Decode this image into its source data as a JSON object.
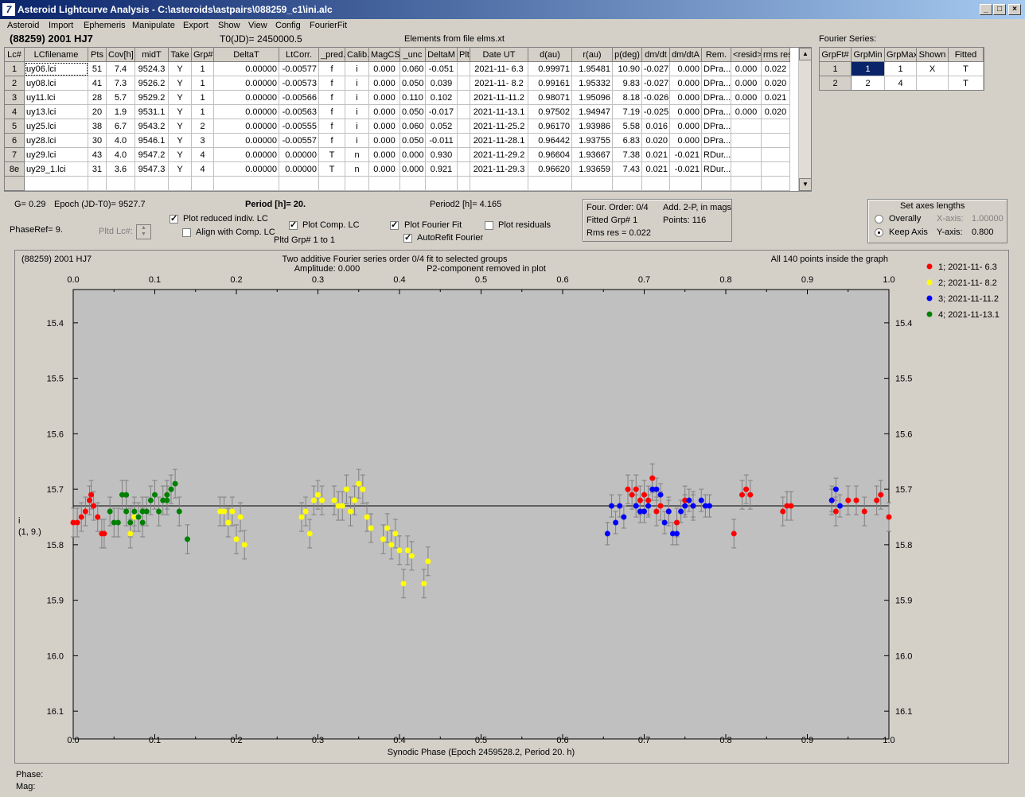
{
  "window": {
    "title": "Asteroid Lightcurve Analysis - C:\\asteroids\\astpairs\\088259_c1\\ini.alc"
  },
  "menu": [
    "Asteroid",
    "Import",
    "Ephemeris",
    "Manipulate",
    "Export",
    "Show",
    "View",
    "Config",
    "FourierFit"
  ],
  "header": {
    "asteroid": "(88259) 2001 HJ7",
    "t0": "T0(JD)= 2450000.5",
    "elements": "Elements from file elms.xt"
  },
  "lc_table": {
    "columns": [
      "Lc#",
      "LCfilename",
      "Pts",
      "Cov[h]",
      "midT",
      "Take",
      "Grp#",
      "DeltaT",
      "LtCorr.",
      "_pred.",
      "Calib.",
      "MagCS",
      "_unc",
      "DeltaM",
      "Plt",
      "Date UT",
      "d(au)",
      "r(au)",
      "p(deg)",
      "dm/dt",
      "dm/dtA",
      "Rem.",
      "<resid>",
      "rms res"
    ],
    "rows": [
      [
        "1",
        "uy06.lci",
        "51",
        "7.4",
        "9524.3",
        "Y",
        "1",
        "0.00000",
        "-0.00577",
        "f",
        "i",
        "0.000",
        "0.060",
        "-0.051",
        "",
        "2021-11- 6.3",
        "0.99971",
        "1.95481",
        "10.90",
        "-0.027",
        "0.000",
        "DPra...",
        "0.000",
        "0.022"
      ],
      [
        "2",
        "uy08.lci",
        "41",
        "7.3",
        "9526.2",
        "Y",
        "1",
        "0.00000",
        "-0.00573",
        "f",
        "i",
        "0.000",
        "0.050",
        "0.039",
        "",
        "2021-11- 8.2",
        "0.99161",
        "1.95332",
        "9.83",
        "-0.027",
        "0.000",
        "DPra...",
        "0.000",
        "0.020"
      ],
      [
        "3",
        "uy11.lci",
        "28",
        "5.7",
        "9529.2",
        "Y",
        "1",
        "0.00000",
        "-0.00566",
        "f",
        "i",
        "0.000",
        "0.110",
        "0.102",
        "",
        "2021-11-11.2",
        "0.98071",
        "1.95096",
        "8.18",
        "-0.026",
        "0.000",
        "DPra...",
        "0.000",
        "0.021"
      ],
      [
        "4",
        "uy13.lci",
        "20",
        "1.9",
        "9531.1",
        "Y",
        "1",
        "0.00000",
        "-0.00563",
        "f",
        "i",
        "0.000",
        "0.050",
        "-0.017",
        "",
        "2021-11-13.1",
        "0.97502",
        "1.94947",
        "7.19",
        "-0.025",
        "0.000",
        "DPra...",
        "0.000",
        "0.020"
      ],
      [
        "5",
        "uy25.lci",
        "38",
        "6.7",
        "9543.2",
        "Y",
        "2",
        "0.00000",
        "-0.00555",
        "f",
        "i",
        "0.000",
        "0.060",
        "0.052",
        "",
        "2021-11-25.2",
        "0.96170",
        "1.93986",
        "5.58",
        "0.016",
        "0.000",
        "DPra...",
        "",
        ""
      ],
      [
        "6",
        "uy28.lci",
        "30",
        "4.0",
        "9546.1",
        "Y",
        "3",
        "0.00000",
        "-0.00557",
        "f",
        "i",
        "0.000",
        "0.050",
        "-0.011",
        "",
        "2021-11-28.1",
        "0.96442",
        "1.93755",
        "6.83",
        "0.020",
        "0.000",
        "DPra...",
        "",
        ""
      ],
      [
        "7",
        "uy29.lci",
        "43",
        "4.0",
        "9547.2",
        "Y",
        "4",
        "0.00000",
        "0.00000",
        "T",
        "n",
        "0.000",
        "0.000",
        "0.930",
        "",
        "2021-11-29.2",
        "0.96604",
        "1.93667",
        "7.38",
        "0.021",
        "-0.021",
        "RDur...",
        "",
        ""
      ],
      [
        "8e",
        "uy29_1.lci",
        "31",
        "3.6",
        "9547.3",
        "Y",
        "4",
        "0.00000",
        "0.00000",
        "T",
        "n",
        "0.000",
        "0.000",
        "0.921",
        "",
        "2021-11-29.3",
        "0.96620",
        "1.93659",
        "7.43",
        "0.021",
        "-0.021",
        "RDur...",
        "",
        ""
      ]
    ]
  },
  "fourier": {
    "label": "Fourier Series:",
    "columns": [
      "GrpFt#",
      "GrpMin",
      "GrpMax",
      "Shown",
      "Fitted"
    ],
    "rows": [
      [
        "1",
        "1",
        "1",
        "X",
        "T"
      ],
      [
        "2",
        "2",
        "4",
        "",
        "T"
      ]
    ]
  },
  "params": {
    "g": "G= 0.29",
    "epoch": "Epoch (JD-T0)= 9527.7",
    "period": "Period [h]= 20.",
    "period2": "Period2 [h]= 4.165",
    "phaseref": "PhaseRef= 9.",
    "pltd_lc": "Pltd Lc#:",
    "pltd_grp": "Pltd Grp#  1   to   1"
  },
  "options": {
    "plot_reduced": "Plot reduced indiv. LC",
    "align_comp": "Align with Comp. LC",
    "plot_comp": "Plot Comp. LC",
    "plot_fourier": "Plot Fourier Fit",
    "plot_residuals": "Plot residuals",
    "autorefit": "AutoRefit Fourier"
  },
  "fit_info": {
    "order": "Four. Order:  0/4",
    "add": "Add. 2-P, in mags",
    "fitted": "Fitted Grp# 1",
    "points": "Points: 116",
    "rms": "Rms res     = 0.022"
  },
  "axes_box": {
    "title": "Set axes lengths",
    "overally": "Overally",
    "keep": "Keep Axis",
    "xaxis_label": "X-axis:",
    "xaxis_val": "1.00000",
    "yaxis_label": "Y-axis:",
    "yaxis_val": "0.800"
  },
  "footer": {
    "phase": "Phase:",
    "mag": "Mag:"
  },
  "chart_data": {
    "type": "scatter",
    "title": "(88259) 2001 HJ7",
    "subtitle1": "Two additive Fourier series order 0/4 fit to selected groups",
    "subtitle2": "Amplitude: 0.000",
    "subtitle3": "P2-component removed in plot",
    "note": "All 140 points inside the graph",
    "xlabel": "Synodic Phase (Epoch 2459528.2, Period 20. h)",
    "ylabel": "i",
    "ylabel2": "(1, 9.)",
    "xlim": [
      0,
      1
    ],
    "ylim": [
      15.34,
      16.15
    ],
    "y_inverted": true,
    "xticks": [
      "0.0",
      "0.1",
      "0.2",
      "0.3",
      "0.4",
      "0.5",
      "0.6",
      "0.7",
      "0.8",
      "0.9",
      "1.0"
    ],
    "yticks": [
      "15.4",
      "15.5",
      "15.6",
      "15.7",
      "15.8",
      "15.9",
      "16.0",
      "16.1"
    ],
    "fit_line": 15.73,
    "legend_position": "top-right, outside plot",
    "series": [
      {
        "name": "1; 2021-11- 6.3",
        "color": "#ff0000",
        "points": [
          [
            0.0,
            15.76
          ],
          [
            0.005,
            15.76
          ],
          [
            0.01,
            15.75
          ],
          [
            0.015,
            15.74
          ],
          [
            0.02,
            15.72
          ],
          [
            0.022,
            15.71
          ],
          [
            0.025,
            15.73
          ],
          [
            0.03,
            15.75
          ],
          [
            0.035,
            15.78
          ],
          [
            0.038,
            15.78
          ],
          [
            0.68,
            15.7
          ],
          [
            0.685,
            15.71
          ],
          [
            0.69,
            15.7
          ],
          [
            0.695,
            15.72
          ],
          [
            0.7,
            15.71
          ],
          [
            0.705,
            15.72
          ],
          [
            0.71,
            15.68
          ],
          [
            0.715,
            15.74
          ],
          [
            0.72,
            15.73
          ],
          [
            0.73,
            15.74
          ],
          [
            0.74,
            15.76
          ],
          [
            0.75,
            15.72
          ],
          [
            0.76,
            15.73
          ],
          [
            0.81,
            15.78
          ],
          [
            0.82,
            15.71
          ],
          [
            0.825,
            15.7
          ],
          [
            0.83,
            15.71
          ],
          [
            0.87,
            15.74
          ],
          [
            0.875,
            15.73
          ],
          [
            0.88,
            15.73
          ],
          [
            0.93,
            15.72
          ],
          [
            0.935,
            15.74
          ],
          [
            0.95,
            15.72
          ],
          [
            0.96,
            15.72
          ],
          [
            0.97,
            15.74
          ],
          [
            0.985,
            15.72
          ],
          [
            0.99,
            15.71
          ],
          [
            1.0,
            15.75
          ]
        ]
      },
      {
        "name": "2; 2021-11- 8.2",
        "color": "#ffff00",
        "points": [
          [
            0.07,
            15.78
          ],
          [
            0.075,
            15.75
          ],
          [
            0.18,
            15.74
          ],
          [
            0.185,
            15.74
          ],
          [
            0.19,
            15.76
          ],
          [
            0.195,
            15.74
          ],
          [
            0.2,
            15.79
          ],
          [
            0.205,
            15.75
          ],
          [
            0.21,
            15.8
          ],
          [
            0.28,
            15.75
          ],
          [
            0.285,
            15.74
          ],
          [
            0.29,
            15.78
          ],
          [
            0.295,
            15.72
          ],
          [
            0.3,
            15.71
          ],
          [
            0.305,
            15.72
          ],
          [
            0.32,
            15.72
          ],
          [
            0.325,
            15.73
          ],
          [
            0.33,
            15.73
          ],
          [
            0.335,
            15.7
          ],
          [
            0.34,
            15.74
          ],
          [
            0.345,
            15.72
          ],
          [
            0.35,
            15.69
          ],
          [
            0.355,
            15.7
          ],
          [
            0.36,
            15.75
          ],
          [
            0.365,
            15.77
          ],
          [
            0.38,
            15.79
          ],
          [
            0.385,
            15.77
          ],
          [
            0.39,
            15.8
          ],
          [
            0.395,
            15.78
          ],
          [
            0.4,
            15.81
          ],
          [
            0.405,
            15.87
          ],
          [
            0.41,
            15.81
          ],
          [
            0.415,
            15.82
          ],
          [
            0.43,
            15.87
          ],
          [
            0.435,
            15.83
          ]
        ]
      },
      {
        "name": "3; 2021-11-11.2",
        "color": "#0000ff",
        "points": [
          [
            0.655,
            15.78
          ],
          [
            0.66,
            15.73
          ],
          [
            0.665,
            15.76
          ],
          [
            0.67,
            15.73
          ],
          [
            0.675,
            15.75
          ],
          [
            0.69,
            15.73
          ],
          [
            0.695,
            15.74
          ],
          [
            0.7,
            15.74
          ],
          [
            0.705,
            15.73
          ],
          [
            0.71,
            15.7
          ],
          [
            0.715,
            15.7
          ],
          [
            0.72,
            15.71
          ],
          [
            0.725,
            15.76
          ],
          [
            0.73,
            15.74
          ],
          [
            0.735,
            15.78
          ],
          [
            0.74,
            15.78
          ],
          [
            0.745,
            15.74
          ],
          [
            0.75,
            15.73
          ],
          [
            0.755,
            15.72
          ],
          [
            0.76,
            15.73
          ],
          [
            0.77,
            15.72
          ],
          [
            0.775,
            15.73
          ],
          [
            0.78,
            15.73
          ],
          [
            0.93,
            15.72
          ],
          [
            0.935,
            15.7
          ],
          [
            0.94,
            15.73
          ]
        ]
      },
      {
        "name": "4; 2021-11-13.1",
        "color": "#008000",
        "points": [
          [
            0.045,
            15.74
          ],
          [
            0.05,
            15.76
          ],
          [
            0.055,
            15.76
          ],
          [
            0.06,
            15.71
          ],
          [
            0.065,
            15.71
          ],
          [
            0.07,
            15.76
          ],
          [
            0.075,
            15.74
          ],
          [
            0.08,
            15.75
          ],
          [
            0.085,
            15.74
          ],
          [
            0.09,
            15.74
          ],
          [
            0.095,
            15.72
          ],
          [
            0.1,
            15.71
          ],
          [
            0.105,
            15.74
          ],
          [
            0.11,
            15.72
          ],
          [
            0.115,
            15.71
          ],
          [
            0.12,
            15.7
          ],
          [
            0.125,
            15.69
          ],
          [
            0.13,
            15.74
          ],
          [
            0.14,
            15.79
          ],
          [
            0.115,
            15.72
          ],
          [
            0.065,
            15.74
          ],
          [
            0.085,
            15.76
          ]
        ]
      }
    ]
  }
}
